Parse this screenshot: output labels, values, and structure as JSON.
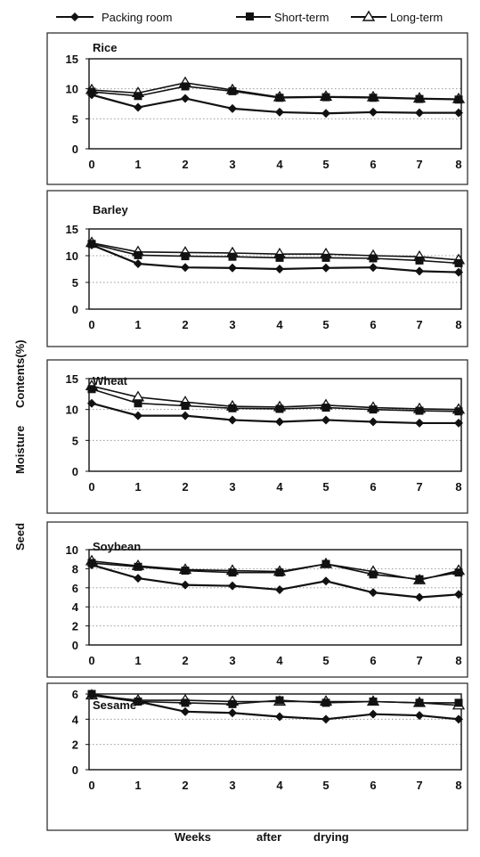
{
  "figure": {
    "y_axis_title_words": [
      "Seed",
      "Moisture",
      "Contents(%)"
    ],
    "x_axis_title_words": [
      "Weeks",
      "after",
      "drying"
    ]
  },
  "legend": [
    {
      "label": "Packing room",
      "marker": "diamond-filled"
    },
    {
      "label": "Short-term",
      "marker": "square-filled"
    },
    {
      "label": "Long-term",
      "marker": "triangle-open"
    }
  ],
  "colors": {
    "line": "#111111",
    "frame": "#333333",
    "grid": "#9a9a9a"
  },
  "chart_data": [
    {
      "type": "line",
      "title": "Rice",
      "x": [
        0,
        1,
        2,
        3,
        4,
        5,
        6,
        7,
        8
      ],
      "ylim": [
        0,
        15
      ],
      "yticks": [
        0,
        5,
        10,
        15
      ],
      "grid": "horizontal dotted",
      "series": [
        {
          "name": "Packing room",
          "values": [
            9.0,
            6.9,
            8.4,
            6.7,
            6.1,
            5.9,
            6.1,
            6.0,
            6.0
          ]
        },
        {
          "name": "Short-term",
          "values": [
            9.5,
            8.8,
            10.4,
            9.6,
            8.5,
            8.6,
            8.5,
            8.3,
            8.2
          ]
        },
        {
          "name": "Long-term",
          "values": [
            9.8,
            9.3,
            11.0,
            9.8,
            8.6,
            8.7,
            8.6,
            8.4,
            8.3
          ]
        }
      ]
    },
    {
      "type": "line",
      "title": "Barley",
      "x": [
        0,
        1,
        2,
        3,
        4,
        5,
        6,
        7,
        8
      ],
      "ylim": [
        0,
        15
      ],
      "yticks": [
        0,
        5,
        10,
        15
      ],
      "grid": "horizontal dotted",
      "series": [
        {
          "name": "Packing room",
          "values": [
            12.0,
            8.5,
            7.8,
            7.7,
            7.5,
            7.7,
            7.8,
            7.1,
            6.9
          ]
        },
        {
          "name": "Short-term",
          "values": [
            12.2,
            10.1,
            9.9,
            9.8,
            9.6,
            9.6,
            9.5,
            9.1,
            8.6
          ]
        },
        {
          "name": "Long-term",
          "values": [
            12.4,
            10.7,
            10.6,
            10.5,
            10.3,
            10.3,
            10.0,
            9.8,
            9.2
          ]
        }
      ]
    },
    {
      "type": "line",
      "title": "Wheat",
      "x": [
        0,
        1,
        2,
        3,
        4,
        5,
        6,
        7,
        8
      ],
      "ylim": [
        0,
        15
      ],
      "yticks": [
        0,
        5,
        10,
        15
      ],
      "grid": "horizontal dotted",
      "series": [
        {
          "name": "Packing room",
          "values": [
            11.0,
            9.0,
            9.0,
            8.3,
            8.0,
            8.3,
            8.0,
            7.8,
            7.8
          ]
        },
        {
          "name": "Short-term",
          "values": [
            13.3,
            11.0,
            10.6,
            10.2,
            10.1,
            10.3,
            10.0,
            9.8,
            9.7
          ]
        },
        {
          "name": "Long-term",
          "values": [
            13.8,
            12.0,
            11.2,
            10.5,
            10.4,
            10.7,
            10.3,
            10.1,
            10.0
          ]
        }
      ]
    },
    {
      "type": "line",
      "title": "Soybean",
      "x": [
        0,
        1,
        2,
        3,
        4,
        5,
        6,
        7,
        8
      ],
      "ylim": [
        0,
        10
      ],
      "yticks": [
        0,
        2,
        4,
        6,
        8,
        10
      ],
      "grid": "horizontal dotted",
      "series": [
        {
          "name": "Packing room",
          "values": [
            8.4,
            7.0,
            6.3,
            6.2,
            5.8,
            6.7,
            5.5,
            5.0,
            5.3
          ]
        },
        {
          "name": "Short-term",
          "values": [
            8.6,
            8.2,
            7.8,
            7.6,
            7.6,
            8.5,
            7.4,
            6.9,
            7.6
          ]
        },
        {
          "name": "Long-term",
          "values": [
            8.8,
            8.3,
            7.9,
            7.8,
            7.7,
            8.5,
            7.7,
            6.8,
            7.8
          ]
        }
      ]
    },
    {
      "type": "line",
      "title": "Sesame",
      "x": [
        0,
        1,
        2,
        3,
        4,
        5,
        6,
        7,
        8
      ],
      "ylim": [
        0,
        6
      ],
      "yticks": [
        0,
        2,
        4,
        6
      ],
      "grid": "horizontal dotted",
      "series": [
        {
          "name": "Packing room",
          "values": [
            5.9,
            5.4,
            4.6,
            4.5,
            4.2,
            4.0,
            4.4,
            4.3,
            4.0
          ]
        },
        {
          "name": "Short-term",
          "values": [
            6.0,
            5.4,
            5.3,
            5.2,
            5.5,
            5.3,
            5.4,
            5.3,
            5.3
          ]
        },
        {
          "name": "Long-term",
          "values": [
            5.9,
            5.5,
            5.5,
            5.4,
            5.4,
            5.4,
            5.4,
            5.3,
            5.1
          ]
        }
      ]
    }
  ]
}
